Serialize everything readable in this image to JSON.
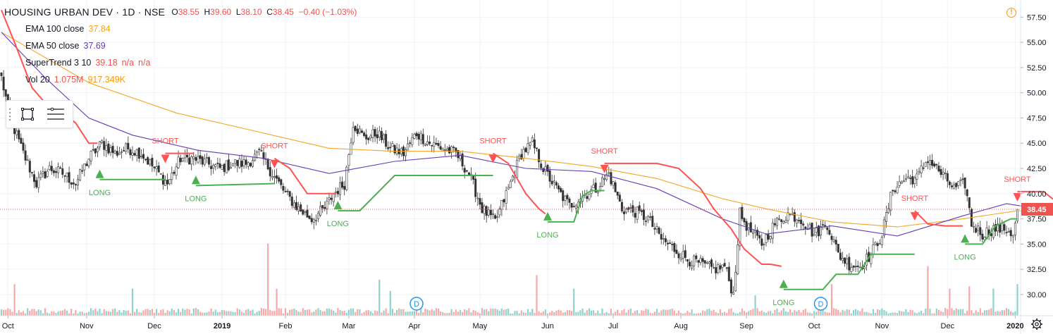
{
  "header": {
    "title": "HOUSING URBAN DEV · 1D · NSE",
    "ohlc": [
      {
        "k": "O",
        "v": "38.55"
      },
      {
        "k": "H",
        "v": "39.60"
      },
      {
        "k": "L",
        "v": "38.10"
      },
      {
        "k": "C",
        "v": "38.45"
      }
    ],
    "change": "−0.40 (−1.03%)"
  },
  "indicators": [
    {
      "name": "EMA 100 close",
      "values": [
        "37.84"
      ],
      "colors": [
        "#f5a623"
      ]
    },
    {
      "name": "EMA 50 close",
      "values": [
        "37.69"
      ],
      "colors": [
        "#673ab7"
      ]
    },
    {
      "name": "SuperTrend 3 10",
      "values": [
        "39.18",
        "n/a",
        "n/a"
      ],
      "colors": [
        "#ef5350",
        "#ef5350",
        "#ef5350"
      ]
    },
    {
      "name": "Vol 20",
      "values": [
        "1.075M",
        "917.349K"
      ],
      "colors": [
        "#ef5350",
        "#ff9800"
      ]
    }
  ],
  "icons": {
    "alert": "!",
    "settings": "gear-icon",
    "rectangle_tool": "rectangle-icon",
    "menu_tool": "lines-icon"
  },
  "colors": {
    "up": "#26a69a",
    "down": "#ef5350",
    "st_up": "#4caf50",
    "st_down": "#ff5252",
    "ema100": "#f5a623",
    "ema50": "#673ab7",
    "grid": "#f0f3fa",
    "price_tag": "#ef5350"
  },
  "chart_data": {
    "type": "candlestick",
    "y_axis_ticks": [
      "57.50",
      "55.00",
      "52.50",
      "50.00",
      "47.50",
      "45.00",
      "42.50",
      "40.00",
      "37.50",
      "35.00",
      "32.50",
      "30.00"
    ],
    "ylim": [
      27.9,
      59.2
    ],
    "x_axis_ticks": [
      "Oct",
      "Nov",
      "Dec",
      "2019",
      "Feb",
      "Mar",
      "Apr",
      "May",
      "Jun",
      "Jul",
      "Aug",
      "Sep",
      "Oct",
      "Nov",
      "Dec",
      "2020"
    ],
    "x_tick_index": [
      3,
      39,
      70,
      101,
      130,
      159,
      189,
      219,
      250,
      280,
      311,
      341,
      372,
      403,
      433,
      464
    ],
    "n_bars": 466,
    "last_price": {
      "value": 38.45,
      "label": "38.45"
    },
    "price_anchors": [
      [
        0,
        51.5
      ],
      [
        4,
        47.5
      ],
      [
        10,
        44
      ],
      [
        16,
        41
      ],
      [
        22,
        42.5
      ],
      [
        28,
        42
      ],
      [
        34,
        41
      ],
      [
        40,
        43.5
      ],
      [
        46,
        45
      ],
      [
        52,
        44
      ],
      [
        58,
        44.5
      ],
      [
        64,
        44
      ],
      [
        70,
        42.5
      ],
      [
        76,
        41
      ],
      [
        82,
        43.5
      ],
      [
        88,
        43.5
      ],
      [
        94,
        43
      ],
      [
        100,
        42.5
      ],
      [
        106,
        43
      ],
      [
        112,
        43
      ],
      [
        118,
        44
      ],
      [
        124,
        42
      ],
      [
        130,
        40
      ],
      [
        136,
        38.5
      ],
      [
        142,
        37.5
      ],
      [
        148,
        38.5
      ],
      [
        152,
        40
      ],
      [
        157,
        41
      ],
      [
        161,
        47
      ],
      [
        166,
        45.5
      ],
      [
        172,
        46
      ],
      [
        178,
        44.5
      ],
      [
        184,
        44
      ],
      [
        190,
        46
      ],
      [
        196,
        45
      ],
      [
        202,
        44.5
      ],
      [
        208,
        44
      ],
      [
        214,
        42
      ],
      [
        220,
        38.5
      ],
      [
        226,
        37.2
      ],
      [
        232,
        40.5
      ],
      [
        238,
        44
      ],
      [
        243,
        45
      ],
      [
        248,
        42.5
      ],
      [
        254,
        40.5
      ],
      [
        260,
        38.8
      ],
      [
        266,
        39.8
      ],
      [
        272,
        40.5
      ],
      [
        278,
        42
      ],
      [
        284,
        38.5
      ],
      [
        290,
        38.2
      ],
      [
        296,
        37.5
      ],
      [
        302,
        35.5
      ],
      [
        308,
        34.5
      ],
      [
        314,
        33.5
      ],
      [
        320,
        33
      ],
      [
        326,
        32.5
      ],
      [
        331,
        32.8
      ],
      [
        335,
        30
      ],
      [
        338,
        38
      ],
      [
        342,
        36.5
      ],
      [
        348,
        35
      ],
      [
        354,
        37
      ],
      [
        360,
        38
      ],
      [
        366,
        37.5
      ],
      [
        372,
        36
      ],
      [
        378,
        37
      ],
      [
        383,
        34
      ],
      [
        388,
        33
      ],
      [
        393,
        32.8
      ],
      [
        398,
        34
      ],
      [
        403,
        36
      ],
      [
        408,
        40.5
      ],
      [
        414,
        41.5
      ],
      [
        419,
        41.5
      ],
      [
        424,
        43.5
      ],
      [
        430,
        42
      ],
      [
        436,
        40.5
      ],
      [
        441,
        41
      ],
      [
        444,
        37
      ],
      [
        449,
        36
      ],
      [
        454,
        36.5
      ],
      [
        460,
        36.5
      ],
      [
        463,
        36
      ],
      [
        466,
        38.45
      ]
    ],
    "st_segments": [
      {
        "dir": "down",
        "points": [
          [
            0,
            58.2
          ],
          [
            6,
            55
          ],
          [
            14,
            50.5
          ],
          [
            22,
            48.5
          ],
          [
            28,
            48
          ],
          [
            34,
            47
          ],
          [
            40,
            45
          ],
          [
            44,
            45
          ]
        ]
      },
      {
        "dir": "up",
        "points": [
          [
            45,
            41.4
          ],
          [
            75,
            41.4
          ]
        ]
      },
      {
        "dir": "down",
        "points": [
          [
            75,
            44
          ],
          [
            88,
            44
          ]
        ]
      },
      {
        "dir": "up",
        "points": [
          [
            89,
            40.8
          ],
          [
            125,
            41
          ]
        ]
      },
      {
        "dir": "down",
        "points": [
          [
            125,
            43.5
          ],
          [
            132,
            42.5
          ],
          [
            140,
            40
          ],
          [
            150,
            40
          ],
          [
            153,
            40
          ]
        ]
      },
      {
        "dir": "up",
        "points": [
          [
            154,
            38.3
          ],
          [
            164,
            38.3
          ],
          [
            180,
            41.8
          ],
          [
            225,
            41.8
          ]
        ]
      },
      {
        "dir": "down",
        "points": [
          [
            225,
            44
          ],
          [
            232,
            43
          ],
          [
            240,
            40
          ],
          [
            246,
            38.5
          ],
          [
            249,
            38
          ]
        ]
      },
      {
        "dir": "up",
        "points": [
          [
            250,
            37.2
          ],
          [
            262,
            37.2
          ],
          [
            266,
            39.8
          ],
          [
            270,
            40.3
          ],
          [
            276,
            40.3
          ]
        ]
      },
      {
        "dir": "down",
        "points": [
          [
            276,
            43
          ],
          [
            300,
            43
          ],
          [
            310,
            42.5
          ],
          [
            320,
            40.5
          ],
          [
            326,
            38.5
          ],
          [
            334,
            36.5
          ],
          [
            340,
            34.5
          ],
          [
            348,
            33
          ],
          [
            352,
            33
          ],
          [
            357,
            32.8
          ]
        ]
      },
      {
        "dir": "up",
        "points": [
          [
            358,
            30.5
          ],
          [
            376,
            30.5
          ],
          [
            382,
            32
          ],
          [
            392,
            32
          ],
          [
            398,
            34
          ],
          [
            418,
            34
          ]
        ]
      },
      {
        "dir": "down",
        "points": [
          [
            418,
            38.3
          ],
          [
            424,
            37
          ],
          [
            432,
            36.8
          ],
          [
            440,
            36.8
          ]
        ]
      },
      {
        "dir": "up",
        "points": [
          [
            441,
            35
          ],
          [
            449,
            35
          ],
          [
            455,
            36.8
          ],
          [
            462,
            37.5
          ],
          [
            465,
            37.5
          ]
        ]
      },
      {
        "dir": "down",
        "points": [
          [
            465,
            40.2
          ],
          [
            477,
            40.2
          ],
          [
            481,
            39.5
          ],
          [
            488,
            39.2
          ],
          [
            493,
            38.5
          ]
        ]
      },
      {
        "dir": "up",
        "points": [
          [
            494,
            35.6
          ],
          [
            512,
            35.6
          ],
          [
            520,
            37.6
          ],
          [
            548,
            37.6
          ]
        ]
      },
      {
        "dir": "down",
        "points": [
          [
            548,
            40.2
          ],
          [
            566,
            40.2
          ],
          [
            575,
            39.5
          ],
          [
            583,
            39.2
          ]
        ]
      }
    ],
    "ema50_points": [
      [
        0,
        56
      ],
      [
        20,
        51.5
      ],
      [
        40,
        47.5
      ],
      [
        60,
        45.8
      ],
      [
        90,
        44.3
      ],
      [
        120,
        43.5
      ],
      [
        150,
        42
      ],
      [
        180,
        43.2
      ],
      [
        210,
        43.8
      ],
      [
        240,
        42.5
      ],
      [
        270,
        42.2
      ],
      [
        300,
        40.5
      ],
      [
        330,
        37.5
      ],
      [
        350,
        36
      ],
      [
        380,
        36.8
      ],
      [
        410,
        35.8
      ],
      [
        440,
        37.8
      ],
      [
        460,
        39
      ],
      [
        475,
        38.5
      ],
      [
        490,
        37.7
      ],
      [
        520,
        37.6
      ]
    ],
    "ema100_points": [
      [
        0,
        56
      ],
      [
        40,
        51
      ],
      [
        80,
        48
      ],
      [
        120,
        46
      ],
      [
        150,
        44.5
      ],
      [
        180,
        44.2
      ],
      [
        210,
        44.2
      ],
      [
        240,
        43.5
      ],
      [
        270,
        42.7
      ],
      [
        300,
        41.5
      ],
      [
        330,
        39.5
      ],
      [
        350,
        38.5
      ],
      [
        380,
        37.2
      ],
      [
        410,
        36.7
      ],
      [
        440,
        37.5
      ],
      [
        465,
        38.3
      ],
      [
        490,
        38
      ],
      [
        520,
        37.8
      ]
    ],
    "signals": [
      {
        "type": "LONG",
        "i": 45
      },
      {
        "type": "SHORT",
        "i": 75
      },
      {
        "type": "LONG",
        "i": 89
      },
      {
        "type": "SHORT",
        "i": 125
      },
      {
        "type": "LONG",
        "i": 154
      },
      {
        "type": "SHORT",
        "i": 225
      },
      {
        "type": "LONG",
        "i": 250
      },
      {
        "type": "SHORT",
        "i": 276
      },
      {
        "type": "LONG",
        "i": 358
      },
      {
        "type": "SHORT",
        "i": 418
      },
      {
        "type": "LONG",
        "i": 441
      },
      {
        "type": "SHORT",
        "i": 465
      }
    ],
    "volume_spikes": [
      [
        6,
        14
      ],
      [
        60,
        12
      ],
      [
        122,
        32
      ],
      [
        126,
        12
      ],
      [
        173,
        16
      ],
      [
        178,
        11
      ],
      [
        245,
        18
      ],
      [
        262,
        12
      ],
      [
        345,
        9
      ],
      [
        380,
        14
      ],
      [
        424,
        22
      ],
      [
        434,
        12
      ],
      [
        443,
        13
      ],
      [
        454,
        12
      ],
      [
        465,
        14
      ],
      [
        480,
        13
      ],
      [
        489,
        15
      ],
      [
        500,
        12
      ]
    ],
    "dividend_markers": [
      {
        "label": "D",
        "i": 190
      },
      {
        "label": "D",
        "i": 375
      }
    ]
  }
}
